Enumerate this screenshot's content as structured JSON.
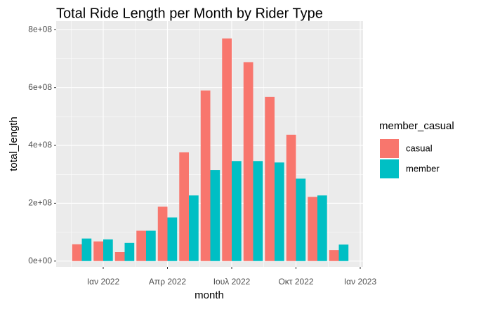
{
  "chart_data": {
    "type": "bar",
    "title": "Total Ride Length per Month by Rider Type",
    "x_label": "month",
    "y_label": "total_length",
    "legend_title": "member_casual",
    "x": [
      "2021-12",
      "2022-01",
      "2022-02",
      "2022-03",
      "2022-04",
      "2022-05",
      "2022-06",
      "2022-07",
      "2022-08",
      "2022-09",
      "2022-10",
      "2022-11",
      "2022-12"
    ],
    "series": [
      {
        "name": "casual",
        "color": "#F8766D",
        "values": [
          58000000,
          68000000,
          31000000,
          105000000,
          188000000,
          376000000,
          590000000,
          770000000,
          688000000,
          568000000,
          437000000,
          222000000,
          38000000
        ]
      },
      {
        "name": "member",
        "color": "#00BFC4",
        "values": [
          78000000,
          75000000,
          63000000,
          105000000,
          151000000,
          227000000,
          315000000,
          346000000,
          346000000,
          341000000,
          285000000,
          227000000,
          57000000
        ]
      }
    ],
    "xlim": [
      "2021-11",
      "2023-01"
    ],
    "xticks": [
      {
        "value": "2022-01",
        "label": "Ιαν 2022"
      },
      {
        "value": "2022-04",
        "label": "Απρ 2022"
      },
      {
        "value": "2022-07",
        "label": "Ιουλ 2022"
      },
      {
        "value": "2022-10",
        "label": "Οκτ 2022"
      },
      {
        "value": "2023-01",
        "label": "Ιαν 2023"
      }
    ],
    "ylim": [
      -20000000,
      830000000
    ],
    "yticks": [
      {
        "value": 0,
        "label": "0e+00"
      },
      {
        "value": 200000000,
        "label": "2e+08"
      },
      {
        "value": 400000000,
        "label": "4e+08"
      },
      {
        "value": 600000000,
        "label": "6e+08"
      },
      {
        "value": 800000000,
        "label": "8e+08"
      }
    ],
    "grid": true,
    "legend": "right"
  }
}
